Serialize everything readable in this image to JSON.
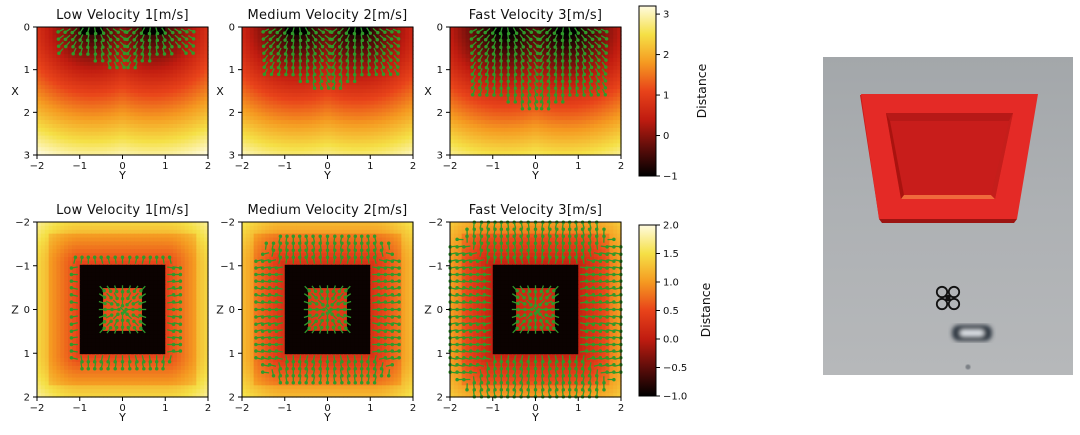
{
  "chart_data": [
    {
      "type": "heatmap",
      "title": "Low Velocity 1[m/s]",
      "view": "top",
      "velocity": 1,
      "xlabel": "Y",
      "ylabel": "X",
      "xlim": [
        -2,
        2
      ],
      "ylim": [
        0,
        3
      ],
      "xticks": [
        "−2",
        "−1",
        "0",
        "1",
        "2"
      ],
      "yticks": [
        "0",
        "1",
        "2",
        "3"
      ],
      "vector_field": true
    },
    {
      "type": "heatmap",
      "title": "Medium Velocity 2[m/s]",
      "view": "top",
      "velocity": 2,
      "xlabel": "Y",
      "ylabel": "X",
      "xlim": [
        -2,
        2
      ],
      "ylim": [
        0,
        3
      ],
      "xticks": [
        "−2",
        "−1",
        "0",
        "1",
        "2"
      ],
      "yticks": [
        "0",
        "1",
        "2",
        "3"
      ],
      "vector_field": true
    },
    {
      "type": "heatmap",
      "title": "Fast Velocity 3[m/s]",
      "view": "top",
      "velocity": 3,
      "xlabel": "Y",
      "ylabel": "X",
      "xlim": [
        -2,
        2
      ],
      "ylim": [
        0,
        3
      ],
      "xticks": [
        "−2",
        "−1",
        "0",
        "1",
        "2"
      ],
      "yticks": [
        "0",
        "1",
        "2",
        "3"
      ],
      "vector_field": true
    },
    {
      "type": "heatmap",
      "title": "Low Velocity 1[m/s]",
      "view": "front",
      "velocity": 1,
      "xlabel": "Y",
      "ylabel": "Z",
      "xlim": [
        -2,
        2
      ],
      "ylim": [
        -2,
        2
      ],
      "xticks": [
        "−2",
        "−1",
        "0",
        "1",
        "2"
      ],
      "yticks": [
        "−2",
        "−1",
        "0",
        "1",
        "2"
      ],
      "vector_field": true
    },
    {
      "type": "heatmap",
      "title": "Medium Velocity 2[m/s]",
      "view": "front",
      "velocity": 2,
      "xlabel": "Y",
      "ylabel": "Z",
      "xlim": [
        -2,
        2
      ],
      "ylim": [
        -2,
        2
      ],
      "xticks": [
        "−2",
        "−1",
        "0",
        "1",
        "2"
      ],
      "yticks": [
        "−2",
        "−1",
        "0",
        "1",
        "2"
      ],
      "vector_field": true
    },
    {
      "type": "heatmap",
      "title": "Fast Velocity 3[m/s]",
      "view": "front",
      "velocity": 3,
      "xlabel": "Y",
      "ylabel": "Z",
      "xlim": [
        -2,
        2
      ],
      "ylim": [
        -2,
        2
      ],
      "xticks": [
        "−2",
        "−1",
        "0",
        "1",
        "2"
      ],
      "yticks": [
        "−2",
        "−1",
        "0",
        "1",
        "2"
      ],
      "vector_field": true
    }
  ],
  "colorbars": [
    {
      "label": "Distance",
      "range": [
        -1,
        3.2
      ],
      "ticks": [
        {
          "v": 3,
          "t": "3"
        },
        {
          "v": 2,
          "t": "2"
        },
        {
          "v": 1,
          "t": "1"
        },
        {
          "v": 0,
          "t": "0"
        },
        {
          "v": -1,
          "t": "−1"
        }
      ]
    },
    {
      "label": "Distance",
      "range": [
        -1,
        2
      ],
      "ticks": [
        {
          "v": 2,
          "t": "2.0"
        },
        {
          "v": 1.5,
          "t": "1.5"
        },
        {
          "v": 1,
          "t": "1.0"
        },
        {
          "v": 0.5,
          "t": "0.5"
        },
        {
          "v": 0,
          "t": "0.0"
        },
        {
          "v": -0.5,
          "t": "−0.5"
        },
        {
          "v": -1,
          "t": "−1.0"
        }
      ]
    }
  ],
  "colors": {
    "colormap": [
      "#000000",
      "#5e0d0a",
      "#c01c10",
      "#e8431a",
      "#f59a21",
      "#f5e046",
      "#fffbe0"
    ],
    "arrow": "#2f9a2a",
    "gate": "#e52623",
    "scene_bg": "#a9adb0"
  },
  "scene": {
    "description_icon": "quadrotor-icon",
    "gate_icon": "gate-icon"
  }
}
